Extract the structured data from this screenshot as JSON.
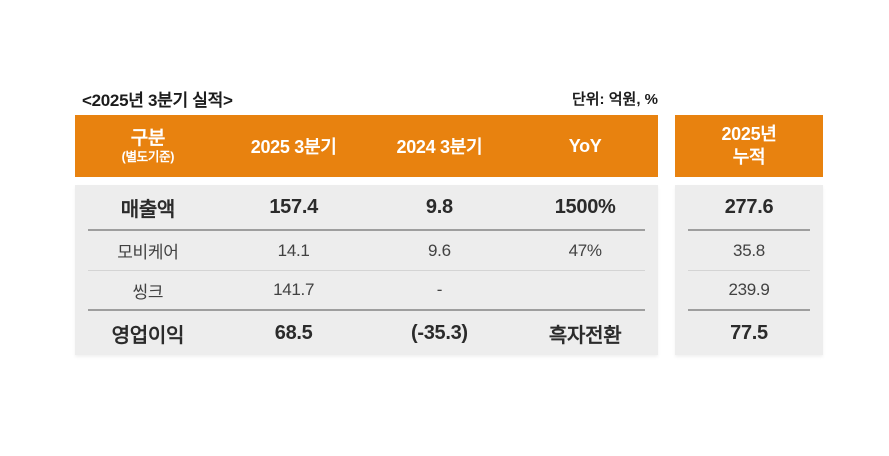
{
  "title": "<2025년 3분기 실적>",
  "unit_label": "단위: 억원, %",
  "colors": {
    "header_bg": "#E8820F",
    "header_text": "#FFFFFF",
    "body_bg": "#EDEDED",
    "text_strong": "#2B2B2B",
    "text_regular": "#424242"
  },
  "chart_data": {
    "type": "table",
    "title": "<2025년 3분기 실적>",
    "unit": "단위: 억원, %",
    "main_columns": [
      "구분",
      "2025 3분기",
      "2024 3분기",
      "YoY"
    ],
    "col1_sub": "(별도기준)",
    "cumulative_header": [
      "2025년",
      "누적"
    ],
    "rows": [
      {
        "label": "매출액",
        "values": [
          "157.4",
          "9.8",
          "1500%"
        ],
        "cumulative": "277.6",
        "emphasis": true
      },
      {
        "label": "모비케어",
        "values": [
          "14.1",
          "9.6",
          "47%"
        ],
        "cumulative": "35.8",
        "emphasis": false
      },
      {
        "label": "씽크",
        "values": [
          "141.7",
          "-",
          ""
        ],
        "cumulative": "239.9",
        "emphasis": false
      },
      {
        "label": "영업이익",
        "values": [
          "68.5",
          "(-35.3)",
          "흑자전환"
        ],
        "cumulative": "77.5",
        "emphasis": true
      }
    ]
  }
}
